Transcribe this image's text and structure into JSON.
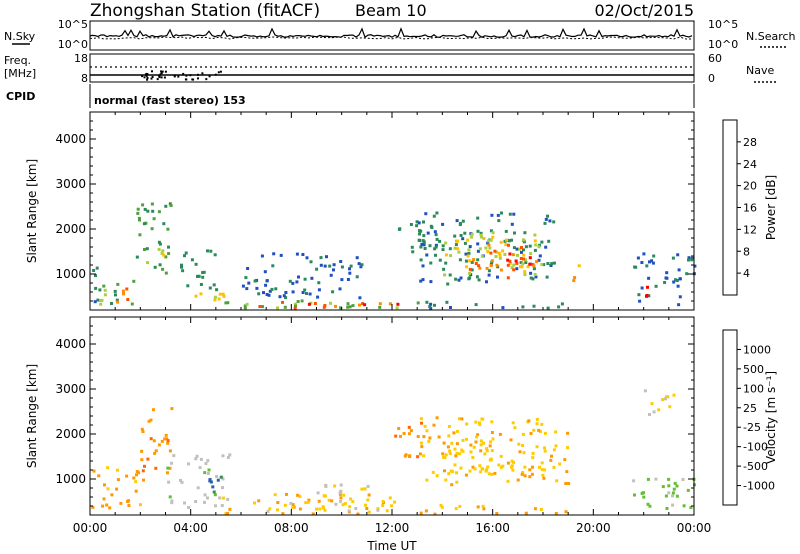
{
  "header": {
    "station": "Zhongshan Station (fitACF)",
    "beam": "Beam 10",
    "date": "02/Oct/2015"
  },
  "top_panels": {
    "nsky_label": "N.Sky",
    "nsky_ticks": [
      "10^5",
      "10^0"
    ],
    "nsearch_label": "N.Search",
    "nsearch_ticks": [
      "10^5",
      "10^0"
    ],
    "freq_label": "Freq.",
    "freq_unit": "[MHz]",
    "freq_ticks": [
      "18",
      "8"
    ],
    "nave_label": "Nave",
    "nave_ticks": [
      "60",
      "0"
    ],
    "cpid_label": "CPID",
    "cpid_value": "normal (fast stereo) 153"
  },
  "colors": {
    "power_scale": [
      "#0000ff",
      "#2050c0",
      "#2a8a5a",
      "#50a040",
      "#a8d040",
      "#ffc000",
      "#ff8c00",
      "#ff5000",
      "#ff0000"
    ],
    "velocity_scale": [
      "#ff0000",
      "#ff3300",
      "#ff6600",
      "#ff9900",
      "#ffcc00",
      "#c0c0c0",
      "#60c030",
      "#3a8a5a",
      "#2a60b0",
      "#1020c0"
    ]
  },
  "chart_data": [
    {
      "type": "heatmap",
      "panel": "power",
      "ylabel": "Slant Range [km]",
      "yticks": [
        "1000",
        "2000",
        "3000",
        "4000"
      ],
      "ylim": [
        200,
        4600
      ],
      "xticks": [
        "00:00",
        "04:00",
        "08:00",
        "12:00",
        "16:00",
        "20:00",
        "00:00"
      ],
      "colorbar_label": "Power [dB]",
      "colorbar_ticks": [
        "4",
        "8",
        "12",
        "16",
        "20",
        "24",
        "28"
      ],
      "colorbar_range": [
        0,
        30
      ],
      "regions": [
        {
          "t0": 0.0,
          "t1": 1.2,
          "r0": 300,
          "r1": 1300,
          "v": 8
        },
        {
          "t0": 0.3,
          "t1": 1.8,
          "r0": 300,
          "r1": 900,
          "v": 14
        },
        {
          "t0": 0.6,
          "t1": 1.5,
          "r0": 350,
          "r1": 700,
          "v": 22
        },
        {
          "t0": 1.8,
          "t1": 3.2,
          "r0": 1000,
          "r1": 2600,
          "v": 10
        },
        {
          "t0": 2.2,
          "t1": 3.0,
          "r0": 1200,
          "r1": 1800,
          "v": 17
        },
        {
          "t0": 3.5,
          "t1": 5.0,
          "r0": 600,
          "r1": 1600,
          "v": 8
        },
        {
          "t0": 4.0,
          "t1": 5.5,
          "r0": 300,
          "r1": 600,
          "v": 18
        },
        {
          "t0": 5.0,
          "t1": 13.0,
          "r0": 250,
          "r1": 450,
          "v": 12
        },
        {
          "t0": 6.5,
          "t1": 12.5,
          "r0": 270,
          "r1": 420,
          "v": 24
        },
        {
          "t0": 8.0,
          "t1": 12.2,
          "r0": 300,
          "r1": 380,
          "v": 29
        },
        {
          "t0": 6.0,
          "t1": 11.0,
          "r0": 500,
          "r1": 1500,
          "v": 6
        },
        {
          "t0": 12.0,
          "t1": 13.8,
          "r0": 1400,
          "r1": 2200,
          "v": 8
        },
        {
          "t0": 13.0,
          "t1": 18.5,
          "r0": 800,
          "r1": 2400,
          "v": 7
        },
        {
          "t0": 14.0,
          "t1": 18.0,
          "r0": 1000,
          "r1": 2000,
          "v": 16
        },
        {
          "t0": 15.0,
          "t1": 17.8,
          "r0": 1100,
          "r1": 1700,
          "v": 24
        },
        {
          "t0": 16.5,
          "t1": 17.5,
          "r0": 900,
          "r1": 1500,
          "v": 28
        },
        {
          "t0": 18.8,
          "t1": 19.5,
          "r0": 800,
          "r1": 1300,
          "v": 20
        },
        {
          "t0": 13.0,
          "t1": 19.0,
          "r0": 250,
          "r1": 420,
          "v": 7
        },
        {
          "t0": 21.5,
          "t1": 24.0,
          "r0": 300,
          "r1": 1500,
          "v": 6
        },
        {
          "t0": 21.8,
          "t1": 22.1,
          "r0": 500,
          "r1": 900,
          "v": 26
        }
      ]
    },
    {
      "type": "heatmap",
      "panel": "velocity",
      "ylabel": "Slant Range [km]",
      "yticks": [
        "1000",
        "2000",
        "3000",
        "4000"
      ],
      "ylim": [
        200,
        4600
      ],
      "xticks": [
        "00:00",
        "04:00",
        "08:00",
        "12:00",
        "16:00",
        "20:00",
        "00:00"
      ],
      "xlabel": "Time UT",
      "colorbar_label": "Velocity [m s⁻¹]",
      "colorbar_ticks": [
        "1000",
        "500",
        "100",
        "25",
        "-25",
        "-100",
        "-500",
        "-1000"
      ],
      "colorbar_range": [
        -1200,
        1200
      ],
      "regions": [
        {
          "t0": 0.0,
          "t1": 2.0,
          "r0": 300,
          "r1": 1300,
          "v": -300
        },
        {
          "t0": 1.8,
          "t1": 3.2,
          "r0": 1000,
          "r1": 2600,
          "v": -400
        },
        {
          "t0": 3.0,
          "t1": 5.5,
          "r0": 400,
          "r1": 1600,
          "v": 150
        },
        {
          "t0": 4.5,
          "t1": 5.5,
          "r0": 700,
          "r1": 1200,
          "v": 700
        },
        {
          "t0": 5.0,
          "t1": 12.5,
          "r0": 250,
          "r1": 700,
          "v": -200
        },
        {
          "t0": 7.0,
          "t1": 12.0,
          "r0": 300,
          "r1": 500,
          "v": -60
        },
        {
          "t0": 9.0,
          "t1": 11.0,
          "r0": 500,
          "r1": 900,
          "v": 0
        },
        {
          "t0": 12.0,
          "t1": 13.5,
          "r0": 1500,
          "r1": 2300,
          "v": -500
        },
        {
          "t0": 13.0,
          "t1": 19.0,
          "r0": 900,
          "r1": 2400,
          "v": -200
        },
        {
          "t0": 14.0,
          "t1": 18.0,
          "r0": 1100,
          "r1": 1900,
          "v": -150
        },
        {
          "t0": 13.0,
          "t1": 19.0,
          "r0": 250,
          "r1": 450,
          "v": -250
        },
        {
          "t0": 21.5,
          "t1": 24.0,
          "r0": 300,
          "r1": 1100,
          "v": 300
        },
        {
          "t0": 22.0,
          "t1": 23.5,
          "r0": 2400,
          "r1": 3000,
          "v": 0
        }
      ]
    }
  ]
}
